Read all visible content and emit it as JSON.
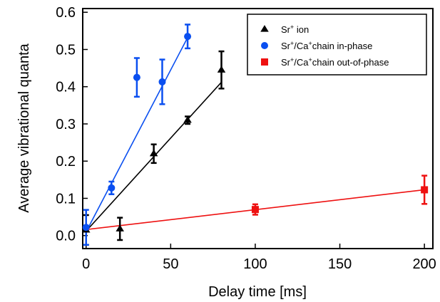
{
  "chart_data": {
    "type": "scatter",
    "xlabel": "Delay time [ms]",
    "ylabel": "Average vibrational quanta",
    "xlim": [
      -2,
      205
    ],
    "ylim": [
      -0.035,
      0.61
    ],
    "xticks": [
      0,
      50,
      100,
      150,
      200
    ],
    "yticks": [
      0.0,
      0.1,
      0.2,
      0.3,
      0.4,
      0.5,
      0.6
    ],
    "xtick_labels": [
      "0",
      "50",
      "100",
      "150",
      "200"
    ],
    "ytick_labels": [
      "0.0",
      "0.1",
      "0.2",
      "0.3",
      "0.4",
      "0.5",
      "0.6"
    ],
    "grid": false,
    "legend_position": "top-right",
    "series": [
      {
        "legend": {
          "pre": "Sr",
          "sup1": "+",
          "mid": " ion",
          "sup2": "",
          "post": ""
        },
        "color": "#000000",
        "marker": "triangle",
        "x": [
          0,
          20,
          40,
          60,
          80
        ],
        "y": [
          0.015,
          0.018,
          0.22,
          0.31,
          0.445
        ],
        "err": [
          0.04,
          0.03,
          0.025,
          0.01,
          0.05
        ],
        "fit": {
          "x": [
            0,
            80
          ],
          "y": [
            0.012,
            0.412
          ]
        }
      },
      {
        "legend": {
          "pre": "Sr",
          "sup1": "+",
          "mid": "/Ca",
          "sup2": "+",
          "post": "chain in-phase"
        },
        "color": "#0a4ff0",
        "marker": "circle",
        "x": [
          0,
          15,
          30,
          45,
          60
        ],
        "y": [
          0.022,
          0.128,
          0.425,
          0.413,
          0.535
        ],
        "err": [
          0.047,
          0.017,
          0.052,
          0.06,
          0.032
        ],
        "fit": {
          "x": [
            0,
            60
          ],
          "y": [
            0.01,
            0.532
          ]
        }
      },
      {
        "legend": {
          "pre": "Sr",
          "sup1": "+",
          "mid": "/Ca",
          "sup2": "+",
          "post": "chain out-of-phase"
        },
        "color": "#ee1111",
        "marker": "square",
        "x": [
          100,
          200
        ],
        "y": [
          0.07,
          0.123
        ],
        "err": [
          0.014,
          0.038
        ],
        "fit": {
          "x": [
            0,
            200
          ],
          "y": [
            0.016,
            0.123
          ]
        }
      }
    ]
  }
}
